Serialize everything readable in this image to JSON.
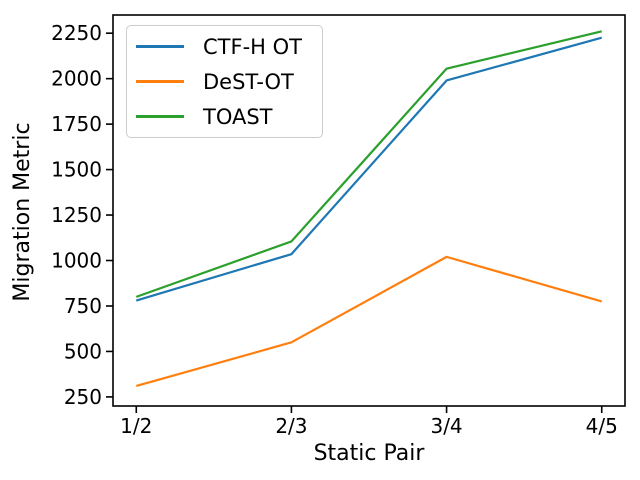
{
  "chart_data": {
    "type": "line",
    "title": "",
    "xlabel": "Static Pair",
    "ylabel": "Migration Metric",
    "categories": [
      "1/2",
      "2/3",
      "3/4",
      "4/5"
    ],
    "series": [
      {
        "name": "CTF-H OT",
        "color": "#1f77b4",
        "values": [
          780,
          1035,
          1990,
          2225
        ]
      },
      {
        "name": "DeST-OT",
        "color": "#ff7f0e",
        "values": [
          310,
          550,
          1020,
          775
        ]
      },
      {
        "name": "TOAST",
        "color": "#2ca02c",
        "values": [
          800,
          1105,
          2055,
          2260
        ]
      }
    ],
    "y_ticks": [
      250,
      500,
      750,
      1000,
      1250,
      1500,
      1750,
      2000,
      2250
    ],
    "ylim": [
      200,
      2350
    ],
    "x_margin": 0.15,
    "legend_position": "upper left",
    "grid": false,
    "axis_color": "#000000",
    "background_color": "#ffffff"
  }
}
